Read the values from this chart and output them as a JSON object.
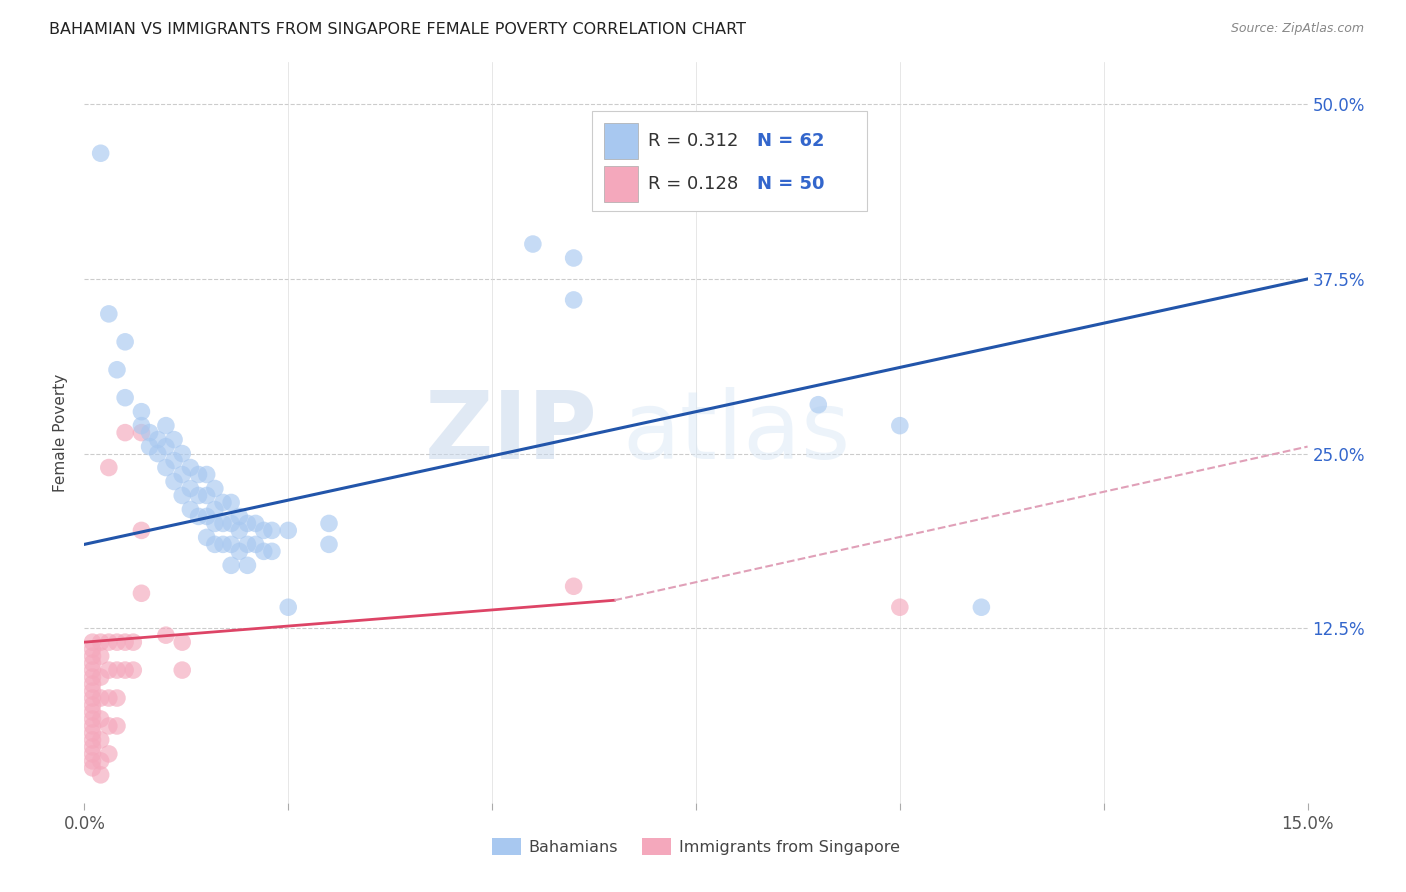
{
  "title": "BAHAMIAN VS IMMIGRANTS FROM SINGAPORE FEMALE POVERTY CORRELATION CHART",
  "source": "Source: ZipAtlas.com",
  "ylabel": "Female Poverty",
  "ytick_labels": [
    "12.5%",
    "25.0%",
    "37.5%",
    "50.0%"
  ],
  "ytick_values": [
    0.125,
    0.25,
    0.375,
    0.5
  ],
  "xlim": [
    0.0,
    0.15
  ],
  "ylim": [
    0.0,
    0.53
  ],
  "blue_color": "#A8C8F0",
  "pink_color": "#F4A8BC",
  "blue_line_color": "#2255AA",
  "pink_line_color": "#DD4466",
  "pink_dash_color": "#E0A0B8",
  "watermark_zip": "ZIP",
  "watermark_atlas": "atlas",
  "blue_line": [
    [
      0.0,
      0.185
    ],
    [
      0.15,
      0.375
    ]
  ],
  "pink_line_solid": [
    [
      0.0,
      0.115
    ],
    [
      0.065,
      0.145
    ]
  ],
  "pink_line_dash": [
    [
      0.065,
      0.145
    ],
    [
      0.15,
      0.255
    ]
  ],
  "blue_dots": [
    [
      0.002,
      0.465
    ],
    [
      0.003,
      0.35
    ],
    [
      0.004,
      0.31
    ],
    [
      0.005,
      0.33
    ],
    [
      0.005,
      0.29
    ],
    [
      0.007,
      0.28
    ],
    [
      0.007,
      0.27
    ],
    [
      0.008,
      0.265
    ],
    [
      0.008,
      0.255
    ],
    [
      0.009,
      0.26
    ],
    [
      0.009,
      0.25
    ],
    [
      0.01,
      0.27
    ],
    [
      0.01,
      0.255
    ],
    [
      0.01,
      0.24
    ],
    [
      0.011,
      0.26
    ],
    [
      0.011,
      0.245
    ],
    [
      0.011,
      0.23
    ],
    [
      0.012,
      0.25
    ],
    [
      0.012,
      0.235
    ],
    [
      0.012,
      0.22
    ],
    [
      0.013,
      0.24
    ],
    [
      0.013,
      0.225
    ],
    [
      0.013,
      0.21
    ],
    [
      0.014,
      0.235
    ],
    [
      0.014,
      0.22
    ],
    [
      0.014,
      0.205
    ],
    [
      0.015,
      0.235
    ],
    [
      0.015,
      0.22
    ],
    [
      0.015,
      0.205
    ],
    [
      0.015,
      0.19
    ],
    [
      0.016,
      0.225
    ],
    [
      0.016,
      0.21
    ],
    [
      0.016,
      0.2
    ],
    [
      0.016,
      0.185
    ],
    [
      0.017,
      0.215
    ],
    [
      0.017,
      0.2
    ],
    [
      0.017,
      0.185
    ],
    [
      0.018,
      0.215
    ],
    [
      0.018,
      0.2
    ],
    [
      0.018,
      0.185
    ],
    [
      0.018,
      0.17
    ],
    [
      0.019,
      0.205
    ],
    [
      0.019,
      0.195
    ],
    [
      0.019,
      0.18
    ],
    [
      0.02,
      0.2
    ],
    [
      0.02,
      0.185
    ],
    [
      0.02,
      0.17
    ],
    [
      0.021,
      0.2
    ],
    [
      0.021,
      0.185
    ],
    [
      0.022,
      0.195
    ],
    [
      0.022,
      0.18
    ],
    [
      0.023,
      0.195
    ],
    [
      0.023,
      0.18
    ],
    [
      0.025,
      0.195
    ],
    [
      0.025,
      0.14
    ],
    [
      0.03,
      0.2
    ],
    [
      0.03,
      0.185
    ],
    [
      0.055,
      0.4
    ],
    [
      0.06,
      0.39
    ],
    [
      0.06,
      0.36
    ],
    [
      0.09,
      0.285
    ],
    [
      0.1,
      0.27
    ],
    [
      0.11,
      0.14
    ]
  ],
  "pink_dots": [
    [
      0.001,
      0.115
    ],
    [
      0.001,
      0.11
    ],
    [
      0.001,
      0.105
    ],
    [
      0.001,
      0.1
    ],
    [
      0.001,
      0.095
    ],
    [
      0.001,
      0.09
    ],
    [
      0.001,
      0.085
    ],
    [
      0.001,
      0.08
    ],
    [
      0.001,
      0.075
    ],
    [
      0.001,
      0.07
    ],
    [
      0.001,
      0.065
    ],
    [
      0.001,
      0.06
    ],
    [
      0.001,
      0.055
    ],
    [
      0.001,
      0.05
    ],
    [
      0.001,
      0.045
    ],
    [
      0.001,
      0.04
    ],
    [
      0.001,
      0.035
    ],
    [
      0.001,
      0.03
    ],
    [
      0.001,
      0.025
    ],
    [
      0.002,
      0.115
    ],
    [
      0.002,
      0.105
    ],
    [
      0.002,
      0.09
    ],
    [
      0.002,
      0.075
    ],
    [
      0.002,
      0.06
    ],
    [
      0.002,
      0.045
    ],
    [
      0.002,
      0.03
    ],
    [
      0.002,
      0.02
    ],
    [
      0.003,
      0.24
    ],
    [
      0.003,
      0.115
    ],
    [
      0.003,
      0.095
    ],
    [
      0.003,
      0.075
    ],
    [
      0.003,
      0.055
    ],
    [
      0.003,
      0.035
    ],
    [
      0.004,
      0.115
    ],
    [
      0.004,
      0.095
    ],
    [
      0.004,
      0.075
    ],
    [
      0.004,
      0.055
    ],
    [
      0.005,
      0.265
    ],
    [
      0.005,
      0.115
    ],
    [
      0.005,
      0.095
    ],
    [
      0.006,
      0.115
    ],
    [
      0.006,
      0.095
    ],
    [
      0.007,
      0.265
    ],
    [
      0.007,
      0.195
    ],
    [
      0.007,
      0.15
    ],
    [
      0.01,
      0.12
    ],
    [
      0.012,
      0.115
    ],
    [
      0.012,
      0.095
    ],
    [
      0.06,
      0.155
    ],
    [
      0.1,
      0.14
    ]
  ]
}
